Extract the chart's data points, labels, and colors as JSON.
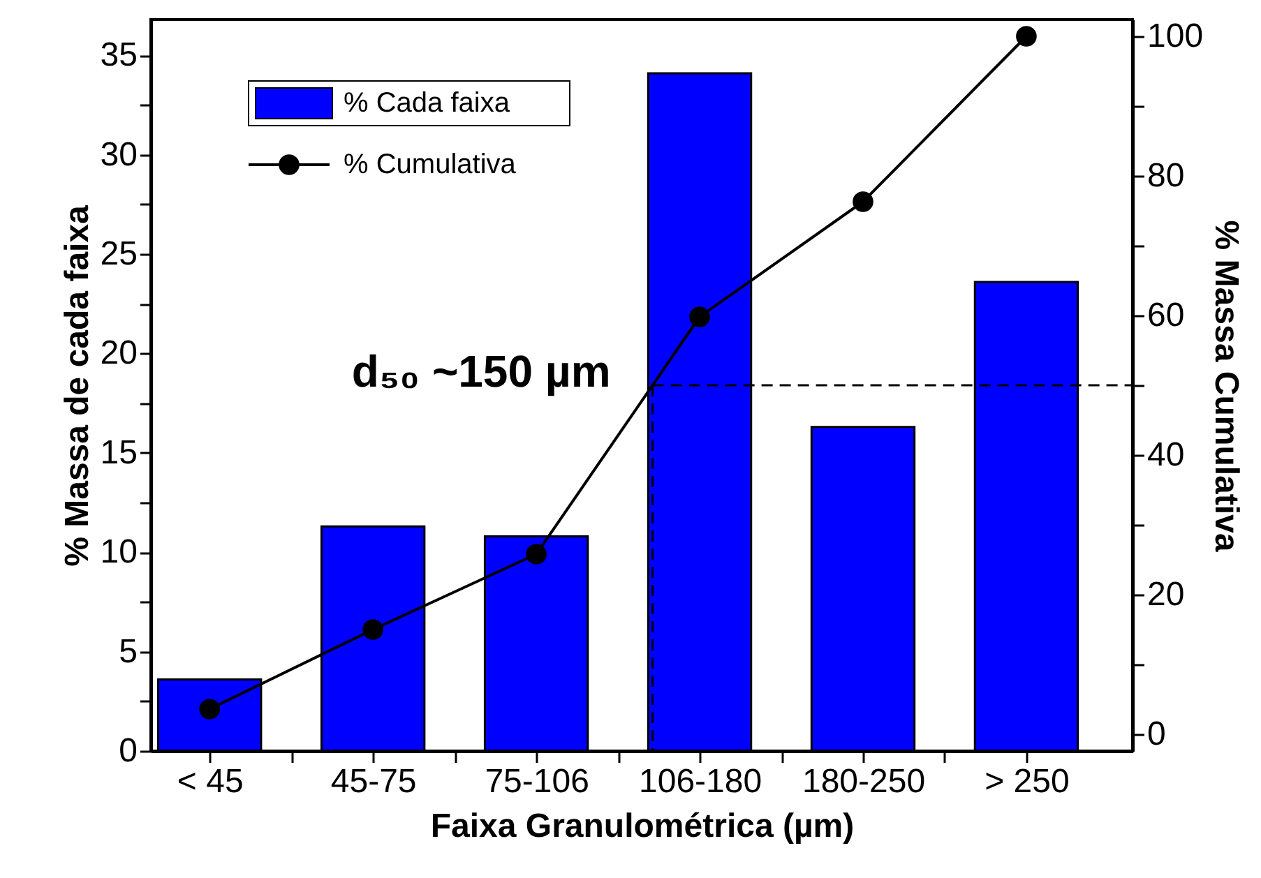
{
  "chart_data": {
    "type": "bar",
    "xlabel": "Faixa Granulométrica (µm)",
    "ylabel": "% Massa de cada faixa",
    "y2label": "% Massa Cumulativa",
    "categories": [
      "< 45",
      "45-75",
      "75-106",
      "106-180",
      "180-250",
      "> 250"
    ],
    "series": [
      {
        "name": "% Cada faixa",
        "color": "#0000ff",
        "values": [
          3.6,
          11.3,
          10.8,
          34.1,
          16.3,
          23.6
        ]
      },
      {
        "name": "% Cumulativa",
        "type": "line",
        "axis": "y2",
        "color": "#000000",
        "marker": "circle",
        "values": [
          3.6,
          15.0,
          25.8,
          59.8,
          76.3,
          100
        ]
      }
    ],
    "ylim": [
      0,
      36.8
    ],
    "yticks": [
      0,
      {
        "value": 2.5,
        "label": null
      },
      5,
      {
        "value": 7.5,
        "label": null
      },
      10,
      {
        "value": 12.5,
        "label": null
      },
      15,
      {
        "value": 17.5,
        "label": null
      },
      20,
      {
        "value": 22.5,
        "label": null
      },
      25,
      {
        "value": 27.5,
        "label": null
      },
      30,
      {
        "value": 32.5,
        "label": null
      },
      35
    ],
    "y2lim": [
      -2.4,
      102.4
    ],
    "y2ticks": [
      0,
      {
        "value": 10,
        "label": null
      },
      20,
      {
        "value": 30,
        "label": null
      },
      40,
      {
        "value": 50,
        "label": null
      },
      60,
      {
        "value": 70,
        "label": null
      },
      80,
      {
        "value": 90,
        "label": null
      },
      100
    ],
    "ref_lines": [
      {
        "axis": "y2",
        "value": 50,
        "label": "d₅₀ ~150 µm",
        "line_style": "dashed",
        "color": "#000000"
      }
    ],
    "legend": "top left",
    "grid": false
  }
}
